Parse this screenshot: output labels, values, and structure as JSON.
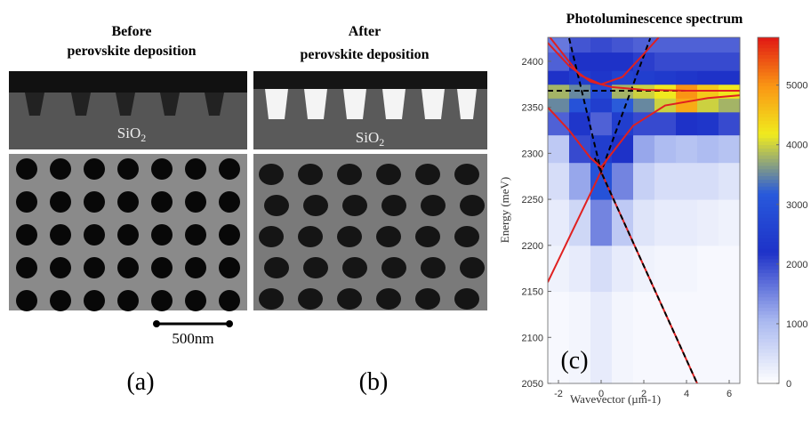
{
  "panels": [
    {
      "title_lines": [
        "Before",
        "perovskite deposition"
      ],
      "material": "SiO",
      "material_subscript": "2",
      "label": "(a)",
      "scale_bar": "500nm"
    },
    {
      "title_lines": [
        "After",
        "perovskite deposition"
      ],
      "material": "SiO",
      "material_subscript": "2",
      "label": "(b)"
    }
  ],
  "chart_data": {
    "type": "heatmap",
    "title": "Photoluminescence spectrum",
    "label": "(c)",
    "xlabel": "Wavevector (µm-1)",
    "ylabel": "Energy (meV)",
    "xlim": [
      -2.5,
      6.5
    ],
    "ylim": [
      2050,
      2426
    ],
    "xticks": [
      -2,
      0,
      2,
      4,
      6
    ],
    "yticks": [
      2050,
      2100,
      2150,
      2200,
      2250,
      2300,
      2350,
      2400
    ],
    "colorbar_lim": [
      0,
      5800
    ],
    "colorbar_ticks": [
      0,
      1000,
      2000,
      3000,
      4000,
      5000
    ],
    "x_edges": [
      -2.5,
      -1.5,
      -0.5,
      0.5,
      1.5,
      2.5,
      3.5,
      4.5,
      5.5,
      6.5
    ],
    "y_edges": [
      2050,
      2150,
      2200,
      2250,
      2290,
      2320,
      2345,
      2360,
      2375,
      2390,
      2410,
      2426
    ],
    "z": [
      [
        100,
        150,
        300,
        150,
        100,
        100,
        100,
        100,
        100
      ],
      [
        200,
        300,
        500,
        300,
        200,
        150,
        150,
        100,
        100
      ],
      [
        300,
        600,
        1500,
        800,
        400,
        300,
        300,
        250,
        200
      ],
      [
        500,
        1200,
        3000,
        1500,
        700,
        500,
        500,
        500,
        400
      ],
      [
        800,
        2000,
        2500,
        2200,
        1200,
        1000,
        900,
        1000,
        900
      ],
      [
        1800,
        2300,
        1800,
        2500,
        2000,
        2000,
        2200,
        2300,
        2000
      ],
      [
        3500,
        3000,
        2500,
        3200,
        3500,
        4000,
        4800,
        4000,
        3800
      ],
      [
        3800,
        3500,
        2800,
        3800,
        4000,
        4200,
        5000,
        4500,
        4200
      ],
      [
        2200,
        2500,
        2300,
        2600,
        2500,
        2400,
        2300,
        2200,
        2200
      ],
      [
        1800,
        2200,
        2200,
        2200,
        2100,
        2000,
        2000,
        2000,
        2000
      ],
      [
        1600,
        1900,
        2000,
        1900,
        1800,
        1800,
        1800,
        1800,
        1800
      ]
    ],
    "series": [
      {
        "color": "#e02020",
        "dashed": false,
        "x": [
          -2.5,
          0.3
        ],
        "values": [
          2160,
          2295
        ]
      },
      {
        "color": "#e02020",
        "dashed": false,
        "x": [
          -0.3,
          4.5
        ],
        "values": [
          2295,
          2050
        ]
      },
      {
        "color": "#000000",
        "dashed": true,
        "x": [
          -0.3,
          4.5
        ],
        "values": [
          2295,
          2050
        ]
      },
      {
        "color": "#000000",
        "dashed": true,
        "x": [
          -1.5,
          0,
          2.3
        ],
        "values": [
          2425,
          2280,
          2425
        ]
      },
      {
        "color": "#000000",
        "dashed": true,
        "x": [
          -2.5,
          6.5
        ],
        "values": [
          2368,
          2368
        ]
      },
      {
        "color": "#e02020",
        "dashed": false,
        "x": [
          -2.4,
          -1,
          0,
          1,
          2,
          2.7
        ],
        "values": [
          2426,
          2385,
          2375,
          2383,
          2408,
          2426
        ]
      },
      {
        "color": "#e02020",
        "dashed": false,
        "x": [
          -2.5,
          -1.5,
          -0.5,
          0.5,
          2,
          4,
          6.5
        ],
        "values": [
          2420,
          2395,
          2378,
          2372,
          2369,
          2368,
          2368
        ]
      },
      {
        "color": "#e02020",
        "dashed": false,
        "x": [
          -2.5,
          -1.5,
          -0.5,
          0,
          0.5,
          1.5,
          3,
          5,
          6.5
        ],
        "values": [
          2350,
          2325,
          2295,
          2285,
          2300,
          2330,
          2352,
          2360,
          2363
        ]
      }
    ]
  }
}
